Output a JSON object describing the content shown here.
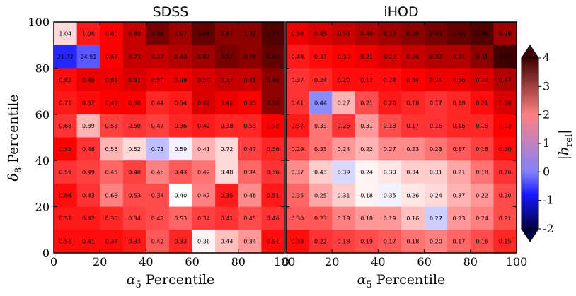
{
  "chart_data": [
    {
      "type": "heatmap",
      "title": "SDSS",
      "xlabel": "α5  Percentile",
      "ylabel": "δ8  Percentile",
      "xlim": [
        0,
        100
      ],
      "ylim": [
        0,
        100
      ],
      "x_ticks": [
        "0",
        "20",
        "40",
        "60",
        "80",
        "100"
      ],
      "y_ticks": [
        "0",
        "20",
        "40",
        "60",
        "80",
        "100"
      ],
      "bins": 10,
      "values_top_to_bottom": [
        [
          1.04,
          1.06,
          0.6,
          0.8,
          0.86,
          1.07,
          0.68,
          0.87,
          1.32,
          1.27
        ],
        [
          21.72,
          24.91,
          0.67,
          0.73,
          0.37,
          0.4,
          0.87,
          0.37,
          0.75,
          0.8
        ],
        [
          0.82,
          0.46,
          0.81,
          0.91,
          0.5,
          0.49,
          0.5,
          0.37,
          0.41,
          0.46
        ],
        [
          0.71,
          0.57,
          0.49,
          0.38,
          0.44,
          0.54,
          0.62,
          0.42,
          0.35,
          0.36
        ],
        [
          0.68,
          0.89,
          0.53,
          0.5,
          0.47,
          0.36,
          0.42,
          0.38,
          0.53,
          0.52
        ],
        [
          0.53,
          0.46,
          0.55,
          0.52,
          0.71,
          0.59,
          0.41,
          0.72,
          0.47,
          0.36
        ],
        [
          0.59,
          0.49,
          0.45,
          0.4,
          0.48,
          0.43,
          0.42,
          0.48,
          0.34,
          0.36
        ],
        [
          0.84,
          0.43,
          0.63,
          0.53,
          0.34,
          0.4,
          0.47,
          0.35,
          0.46,
          0.51
        ],
        [
          0.51,
          0.47,
          0.35,
          0.34,
          0.42,
          0.53,
          0.34,
          0.41,
          0.45,
          0.46
        ],
        [
          0.51,
          0.41,
          0.37,
          0.33,
          0.42,
          0.33,
          0.36,
          0.44,
          0.34,
          0.51
        ]
      ],
      "b_rel_top_to_bottom": [
        [
          1.3,
          2.8,
          3.0,
          3.3,
          3.7,
          3.5,
          3.8,
          3.6,
          3.6,
          3.9
        ],
        [
          -0.7,
          -0.3,
          3.0,
          3.3,
          3.3,
          3.4,
          3.5,
          3.7,
          3.6,
          3.8
        ],
        [
          2.9,
          3.1,
          3.1,
          3.2,
          3.1,
          3.1,
          3.2,
          3.3,
          3.3,
          3.6
        ],
        [
          2.8,
          2.9,
          3.0,
          3.0,
          2.7,
          2.8,
          3.2,
          3.1,
          3.0,
          3.6
        ],
        [
          2.6,
          1.6,
          2.5,
          2.6,
          2.5,
          2.7,
          2.8,
          2.7,
          2.7,
          3.0
        ],
        [
          3.0,
          2.6,
          1.6,
          1.3,
          0.5,
          0.9,
          1.6,
          1.3,
          2.5,
          2.7
        ],
        [
          2.6,
          2.5,
          2.2,
          2.5,
          2.0,
          2.3,
          2.1,
          1.3,
          2.2,
          2.6
        ],
        [
          2.9,
          2.6,
          2.0,
          2.4,
          2.4,
          1.0,
          2.0,
          2.8,
          1.9,
          2.8
        ],
        [
          2.8,
          2.8,
          2.7,
          2.5,
          2.4,
          2.2,
          2.5,
          2.6,
          2.4,
          2.6
        ],
        [
          2.9,
          2.9,
          2.9,
          2.8,
          2.3,
          2.7,
          1.1,
          1.5,
          1.8,
          2.9
        ]
      ]
    },
    {
      "type": "heatmap",
      "title": "iHOD",
      "xlabel": "α5  Percentile",
      "xlim": [
        0,
        100
      ],
      "ylim": [
        0,
        100
      ],
      "x_ticks": [
        "0",
        "20",
        "40",
        "60",
        "80",
        "100"
      ],
      "bins": 10,
      "values_top_to_bottom": [
        [
          0.58,
          0.45,
          0.53,
          0.4,
          0.33,
          0.36,
          0.43,
          0.63,
          0.86,
          0.99
        ],
        [
          0.48,
          0.37,
          0.3,
          0.21,
          0.29,
          0.26,
          0.32,
          0.24,
          0.31,
          0.62
        ],
        [
          0.37,
          0.24,
          0.2,
          0.17,
          0.24,
          0.24,
          0.21,
          0.36,
          0.22,
          0.47
        ],
        [
          0.41,
          0.44,
          0.27,
          0.21,
          0.2,
          0.18,
          0.17,
          0.18,
          0.21,
          0.28
        ],
        [
          0.57,
          0.33,
          0.26,
          0.31,
          0.18,
          0.17,
          0.16,
          0.16,
          0.16,
          0.23
        ],
        [
          0.29,
          0.33,
          0.24,
          0.22,
          0.27,
          0.23,
          0.23,
          0.17,
          0.18,
          0.2
        ],
        [
          0.37,
          0.43,
          0.39,
          0.24,
          0.3,
          0.34,
          0.31,
          0.21,
          0.18,
          0.26
        ],
        [
          0.35,
          0.25,
          0.31,
          0.18,
          0.35,
          0.26,
          0.24,
          0.37,
          0.22,
          0.2
        ],
        [
          0.3,
          0.23,
          0.18,
          0.18,
          0.19,
          0.16,
          0.27,
          0.23,
          0.24,
          0.21
        ],
        [
          0.33,
          0.22,
          0.18,
          0.19,
          0.17,
          0.18,
          0.2,
          0.17,
          0.16,
          0.15
        ]
      ],
      "b_rel_top_to_bottom": [
        [
          3.1,
          3.2,
          3.3,
          3.4,
          3.5,
          3.6,
          3.7,
          3.8,
          3.9,
          3.5
        ],
        [
          2.8,
          2.9,
          3.0,
          3.1,
          3.2,
          3.3,
          3.4,
          3.4,
          3.6,
          4.0
        ],
        [
          2.6,
          2.7,
          2.9,
          2.9,
          2.9,
          3.0,
          3.1,
          3.1,
          3.2,
          3.4
        ],
        [
          2.6,
          0.1,
          1.6,
          2.4,
          2.8,
          2.7,
          2.6,
          2.7,
          2.9,
          3.2
        ],
        [
          2.8,
          2.1,
          2.6,
          1.8,
          2.4,
          2.6,
          2.6,
          2.7,
          2.7,
          3.0
        ],
        [
          2.4,
          2.1,
          1.8,
          1.6,
          1.9,
          1.9,
          2.1,
          2.3,
          2.5,
          2.9
        ],
        [
          1.9,
          1.4,
          0.7,
          1.1,
          1.2,
          1.4,
          1.4,
          1.7,
          2.1,
          2.6
        ],
        [
          2.2,
          1.7,
          1.4,
          1.1,
          0.9,
          1.2,
          1.3,
          1.6,
          1.8,
          2.4
        ],
        [
          2.3,
          2.3,
          2.0,
          1.8,
          1.8,
          1.5,
          0.6,
          1.8,
          2.0,
          2.4
        ],
        [
          2.9,
          2.6,
          2.5,
          2.4,
          2.3,
          2.1,
          2.0,
          2.2,
          2.4,
          2.7
        ]
      ]
    }
  ],
  "colorbar": {
    "label": "|b_rel|",
    "label_main": "|b",
    "label_sub": "rel",
    "label_close": "|",
    "min": -2,
    "max": 4,
    "ticks": [
      "4",
      "3",
      "2",
      "1",
      "0",
      "-1",
      "-2"
    ],
    "colors": {
      "low": "#000040",
      "mid_low": "#0000ff",
      "center": "#ffffff",
      "mid_high": "#ff0000",
      "high": "#400000"
    }
  }
}
